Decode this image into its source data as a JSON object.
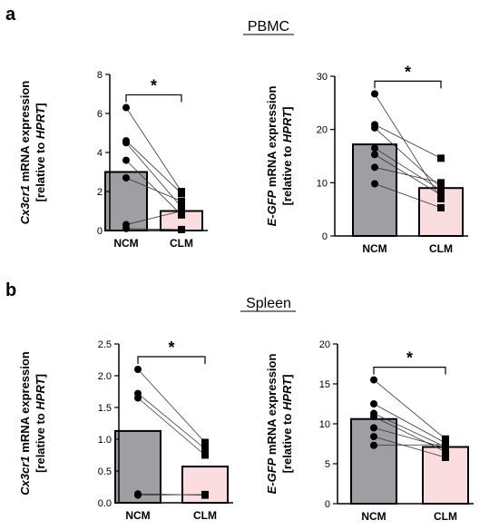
{
  "panel_labels": {
    "a": "a",
    "b": "b"
  },
  "sections": {
    "a": "PBMC",
    "b": "Spleen"
  },
  "colors": {
    "ncm_bar": "#9e9ea3",
    "clm_bar": "#fbdde0",
    "axis": "#000000"
  },
  "chart_data": [
    {
      "type": "bar",
      "panel": "a-left",
      "categories": [
        "NCM",
        "CLM"
      ],
      "values": [
        3.0,
        1.0
      ],
      "ylabel": {
        "gene": "Cx3cr1",
        "rest": " mRNA expression",
        "line2_a": "[relative to ",
        "line2_ref": "HPRT",
        "line2_b": "]"
      },
      "ylim": [
        0,
        8
      ],
      "yticks": [
        0,
        2,
        4,
        6,
        8
      ],
      "significance": "*",
      "paired_points": [
        [
          6.3,
          2.0
        ],
        [
          4.6,
          1.9
        ],
        [
          4.5,
          1.2
        ],
        [
          3.6,
          0.8
        ],
        [
          2.7,
          1.5
        ],
        [
          0.3,
          1.0
        ],
        [
          0.1,
          0.05
        ]
      ]
    },
    {
      "type": "bar",
      "panel": "a-right",
      "categories": [
        "NCM",
        "CLM"
      ],
      "values": [
        17.2,
        9.0
      ],
      "ylabel": {
        "gene": "E-GFP",
        "rest": " mRNA expression",
        "line2_a": "[relative to ",
        "line2_ref": "HPRT",
        "line2_b": "]"
      },
      "ylim": [
        0,
        30
      ],
      "yticks": [
        0,
        10,
        20,
        30
      ],
      "significance": "*",
      "paired_points": [
        [
          26.7,
          7.0
        ],
        [
          20.9,
          14.6
        ],
        [
          20.3,
          9.1
        ],
        [
          16.5,
          8.6
        ],
        [
          15.3,
          7.7
        ],
        [
          12.9,
          10.0
        ],
        [
          9.8,
          5.3
        ]
      ]
    },
    {
      "type": "bar",
      "panel": "b-left",
      "categories": [
        "NCM",
        "CLM"
      ],
      "values": [
        1.13,
        0.57
      ],
      "ylabel": {
        "gene": "Cx3cr1",
        "rest": " mRNA expression",
        "line2_a": "[relative to ",
        "line2_ref": "HPRT",
        "line2_b": "]"
      },
      "ylim": [
        0,
        2.5
      ],
      "yticks": [
        0,
        0.5,
        1.0,
        1.5,
        2.0,
        2.5
      ],
      "ytick_labels": [
        "0.0",
        "0.5",
        "1.0",
        "1.5",
        "2.0",
        "2.5"
      ],
      "significance": "*",
      "paired_points": [
        [
          2.1,
          0.95
        ],
        [
          1.72,
          0.85
        ],
        [
          1.65,
          0.75
        ],
        [
          0.14,
          0.12
        ],
        [
          0.12,
          0.13
        ]
      ]
    },
    {
      "type": "bar",
      "panel": "b-right",
      "categories": [
        "NCM",
        "CLM"
      ],
      "values": [
        10.6,
        7.1
      ],
      "ylabel": {
        "gene": "E-GFP",
        "rest": " mRNA expression",
        "line2_a": "[relative to ",
        "line2_ref": "HPRT",
        "line2_b": "]"
      },
      "ylim": [
        0,
        20
      ],
      "yticks": [
        0,
        5,
        10,
        15,
        20
      ],
      "significance": "*",
      "paired_points": [
        [
          15.5,
          8.1
        ],
        [
          12.5,
          7.6
        ],
        [
          11.3,
          7.1
        ],
        [
          10.9,
          6.5
        ],
        [
          9.5,
          7.0
        ],
        [
          8.4,
          5.8
        ],
        [
          7.3,
          7.4
        ]
      ]
    }
  ]
}
